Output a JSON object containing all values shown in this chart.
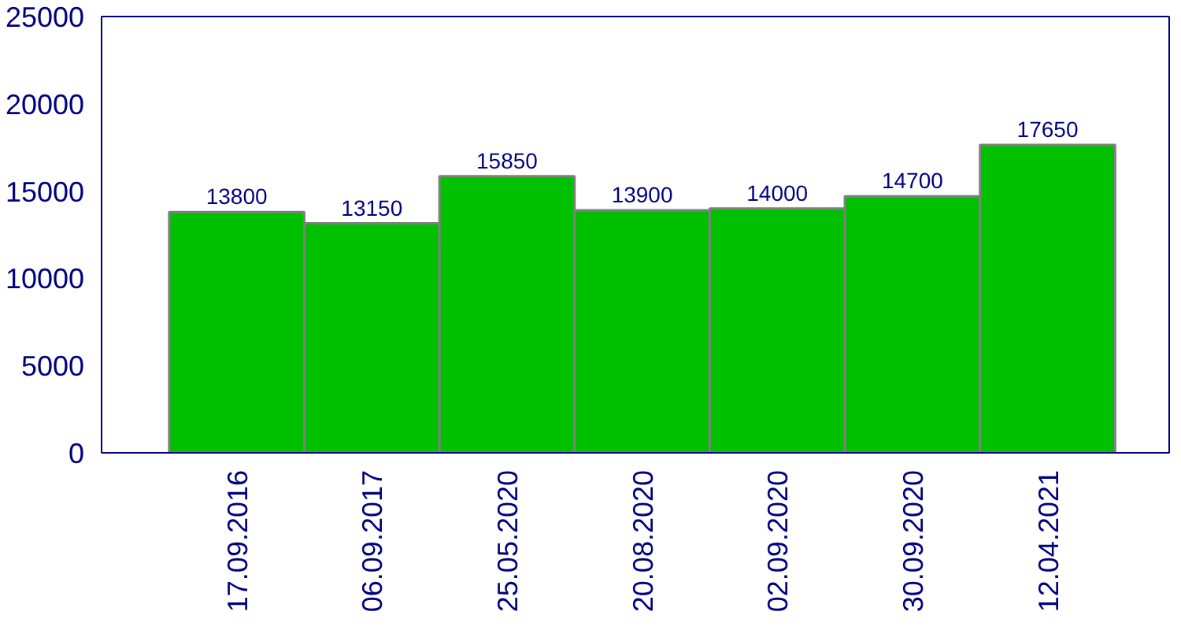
{
  "chart_data": {
    "type": "bar",
    "categories": [
      "17.09.2016",
      "06.09.2017",
      "25.05.2020",
      "20.08.2020",
      "02.09.2020",
      "30.09.2020",
      "12.04.2021"
    ],
    "values": [
      13800,
      13150,
      15850,
      13900,
      14000,
      14700,
      17650
    ],
    "color": "#00c000",
    "ylim": [
      0,
      25000
    ],
    "yticks": [
      0,
      5000,
      10000,
      15000,
      20000,
      25000
    ],
    "grid": false,
    "data_labels": true
  }
}
